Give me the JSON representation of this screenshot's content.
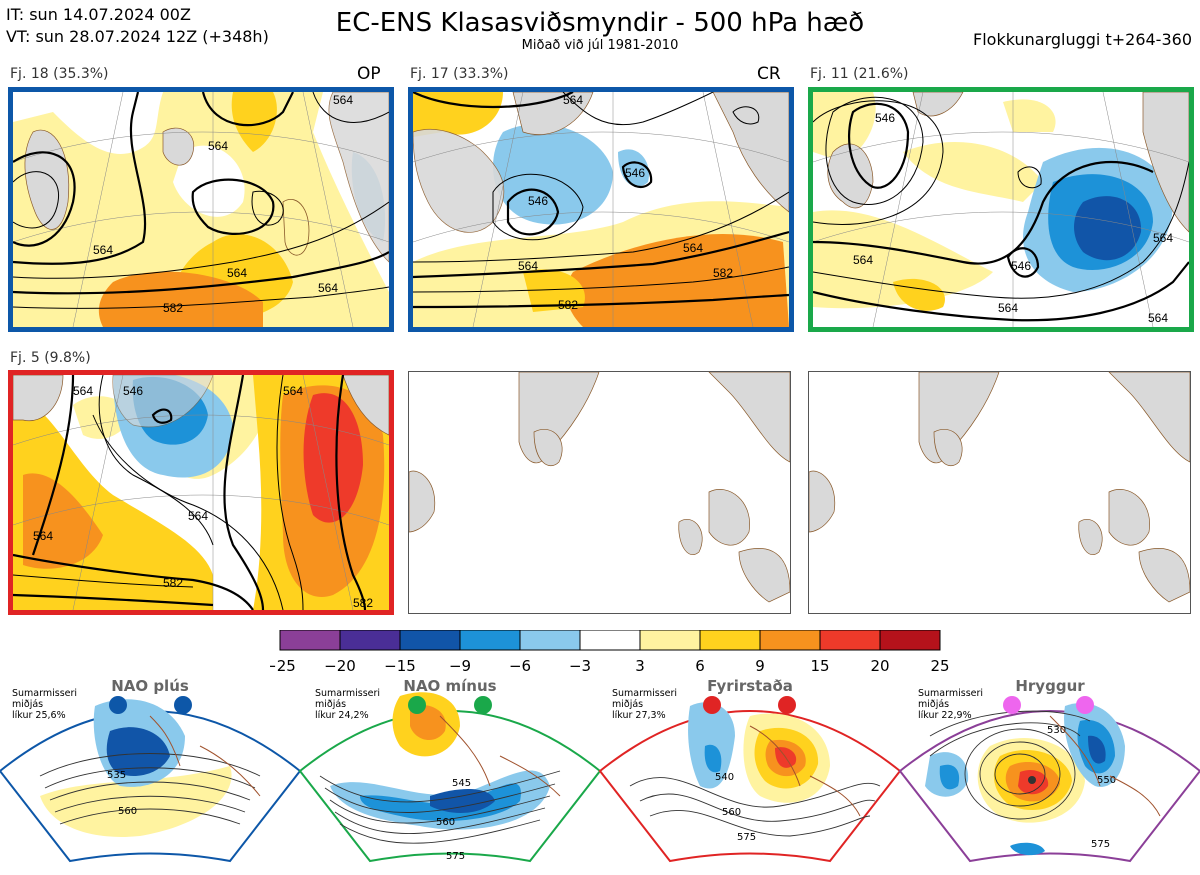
{
  "header": {
    "it_line": "IT: sun 14.07.2024 00Z",
    "vt_line": "VT: sun 28.07.2024 12Z  (+348h)",
    "title": "EC-ENS Klasasviðsmyndir - 500 hPa hæð",
    "subtitle": "Miðað við júl 1981-2010",
    "window": "Flokkunargluggi t+264-360"
  },
  "clusters": [
    {
      "label": "Fj. 18 (35.3%)",
      "tag": "OP",
      "border_color": "#0d57a8",
      "contour_labels": [
        "564",
        "564",
        "564",
        "582",
        "564",
        "564"
      ]
    },
    {
      "label": "Fj. 17 (33.3%)",
      "tag": "CR",
      "border_color": "#0d57a8",
      "contour_labels": [
        "564",
        "546",
        "546",
        "564",
        "582",
        "564",
        "582"
      ]
    },
    {
      "label": "Fj. 11 (21.6%)",
      "tag": "",
      "border_color": "#1aa84a",
      "contour_labels": [
        "546",
        "564",
        "546",
        "564",
        "564",
        "564"
      ]
    },
    {
      "label": "Fj. 5 (9.8%)",
      "tag": "",
      "border_color": "#e02424",
      "contour_labels": [
        "564",
        "546",
        "564",
        "564",
        "564",
        "582",
        "582"
      ]
    }
  ],
  "colorbar": {
    "ticks": [
      "−25",
      "−20",
      "−15",
      "−9",
      "−6",
      "−3",
      "3",
      "6",
      "9",
      "15",
      "20",
      "25"
    ],
    "colors": [
      "#8b3f98",
      "#4a2e96",
      "#1155a8",
      "#1d92d8",
      "#8ac9ec",
      "#ffffff",
      "#fff3a0",
      "#ffd21e",
      "#f7921e",
      "#ee3a2a",
      "#b5121b"
    ]
  },
  "regimes": [
    {
      "name": "NAO plús",
      "season": "Sumarmisseri",
      "mean": "miðjás",
      "prob": "líkur 25,6%",
      "color": "#0d57a8",
      "contour_labels": [
        "535",
        "560"
      ]
    },
    {
      "name": "NAO mínus",
      "season": "Sumarmisseri",
      "mean": "miðjás",
      "prob": "líkur 24,2%",
      "color": "#1aa84a",
      "contour_labels": [
        "545",
        "560",
        "575"
      ]
    },
    {
      "name": "Fyrirstaða",
      "season": "Sumarmisseri",
      "mean": "miðjás",
      "prob": "líkur 27,3%",
      "color": "#e02424",
      "contour_labels": [
        "540",
        "560",
        "575"
      ]
    },
    {
      "name": "Hryggur",
      "season": "Sumarmisseri",
      "mean": "miðjás",
      "prob": "líkur 22,9%",
      "color": "#ee66ee",
      "contour_labels": [
        "530",
        "550",
        "575"
      ]
    }
  ]
}
